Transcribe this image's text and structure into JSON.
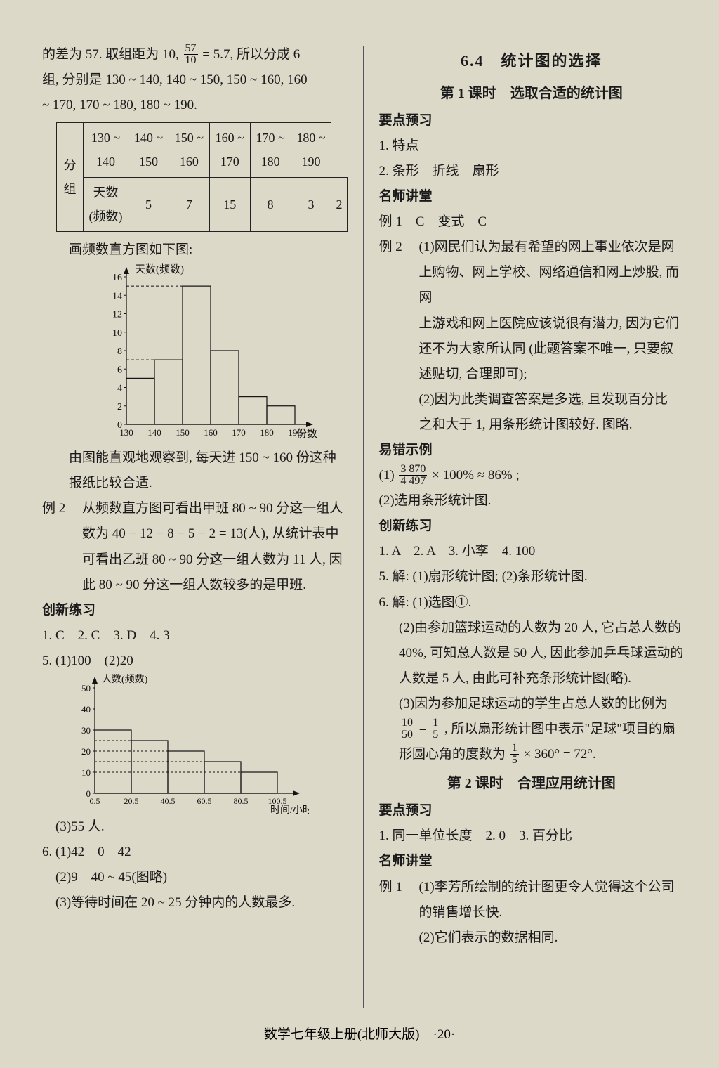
{
  "left": {
    "p1a": "的差为 57. 取组距为 10,",
    "p1_frac_n": "57",
    "p1_frac_d": "10",
    "p1b": " = 5.7, 所以分成 6",
    "p2": "组, 分别是 130 ~ 140, 140 ~ 150, 150 ~ 160, 160",
    "p3": "~ 170, 170 ~ 180, 180 ~ 190.",
    "table": {
      "r1": [
        "分组",
        "130 ~ 140",
        "140 ~ 150",
        "150 ~ 160",
        "160 ~ 170",
        "170 ~ 180",
        "180 ~ 190"
      ],
      "r2": [
        "天数 (频数)",
        "5",
        "7",
        "15",
        "8",
        "3",
        "2"
      ]
    },
    "p4": "画频数直方图如下图:",
    "chart1": {
      "ylabel": "天数(频数)",
      "xlabel": "份数",
      "xticks": [
        "130",
        "140",
        "150",
        "160",
        "170",
        "180",
        "190"
      ],
      "yticks": [
        0,
        2,
        4,
        6,
        8,
        10,
        12,
        14,
        16
      ],
      "bars": [
        5,
        7,
        15,
        8,
        3,
        2
      ],
      "bg": "#ddd9c9",
      "axis": "#111",
      "bar_stroke": "#111",
      "dash": "#111"
    },
    "p5": "由图能直观地观察到, 每天进 150 ~ 160 份这种",
    "p6": "报纸比较合适.",
    "ex2l": "例 2",
    "ex2a": "从频数直方图可看出甲班 80 ~ 90 分这一组人",
    "ex2b": "数为 40 − 12 − 8 − 5 − 2 = 13(人), 从统计表中",
    "ex2c": "可看出乙班 80 ~ 90 分这一组人数为 11 人, 因",
    "ex2d": "此 80 ~ 90 分这一组人数较多的是甲班.",
    "cx": "创新练习",
    "q1": "1. C　2. C　3. D　4. 3",
    "q5": "5. (1)100　(2)20",
    "chart2": {
      "ylabel": "人数(频数)",
      "xlabel": "时间/小时",
      "xticks": [
        "0.5",
        "20.5",
        "40.5",
        "60.5",
        "80.5",
        "100.5"
      ],
      "yticks": [
        0,
        10,
        20,
        30,
        40,
        50
      ],
      "bars": [
        30,
        25,
        20,
        15,
        10
      ],
      "bg": "#ddd9c9",
      "axis": "#111"
    },
    "q53": "(3)55 人.",
    "q6a": "6. (1)42　0　42",
    "q6b": "(2)9　40 ~ 45(图略)",
    "q6c": "(3)等待时间在 20 ~ 25 分钟内的人数最多."
  },
  "right": {
    "h1": "6.4　统计图的选择",
    "h2": "第 1 课时　选取合适的统计图",
    "yd": "要点预习",
    "yd1": "1. 特点",
    "yd2": "2. 条形　折线　扇形",
    "ms": "名师讲堂",
    "e1": "例 1　C　变式　C",
    "e2l": "例 2",
    "e2a": "(1)网民们认为最有希望的网上事业依次是网",
    "e2b": "上购物、网上学校、网络通信和网上炒股, 而网",
    "e2c": "上游戏和网上医院应该说很有潜力, 因为它们",
    "e2d": "还不为大家所认同 (此题答案不唯一, 只要叙",
    "e2e": "述贴切, 合理即可);",
    "e2f": "(2)因为此类调查答案是多选, 且发现百分比",
    "e2g": "之和大于 1, 用条形统计图较好. 图略.",
    "yc": "易错示例",
    "yc1a": "(1)",
    "yc1_fn": "3 870",
    "yc1_fd": "4 497",
    "yc1b": " × 100% ≈ 86% ;",
    "yc2": "(2)选用条形统计图.",
    "cx": "创新练习",
    "c1": "1. A　2. A　3. 小李　4. 100",
    "c5": "5. 解: (1)扇形统计图; (2)条形统计图.",
    "c6a": "6. 解: (1)选图①.",
    "c6b": "(2)由参加篮球运动的人数为 20 人, 它占总人数的",
    "c6c": "40%, 可知总人数是 50 人, 因此参加乒乓球运动的",
    "c6d": "人数是 5 人, 由此可补充条形统计图(略).",
    "c6e": "(3)因为参加足球运动的学生占总人数的比例为",
    "c6f_n1": "10",
    "c6f_d1": "50",
    "c6f_mid": " = ",
    "c6f_n2": "1",
    "c6f_d2": "5",
    "c6f_b": ", 所以扇形统计图中表示\"足球\"项目的扇",
    "c6g_a": "形圆心角的度数为",
    "c6g_n": "1",
    "c6g_d": "5",
    "c6g_b": " × 360° = 72°.",
    "h3": "第 2 课时　合理应用统计图",
    "yd2h": "要点预习",
    "ydb1": "1. 同一单位长度　2. 0　3. 百分比",
    "ms2": "名师讲堂",
    "e1bl": "例 1",
    "e1ba": "(1)李芳所绘制的统计图更令人觉得这个公司",
    "e1bb": "的销售增长快.",
    "e1bc": "(2)它们表示的数据相同."
  },
  "footer": "数学七年级上册(北师大版)　·20·"
}
